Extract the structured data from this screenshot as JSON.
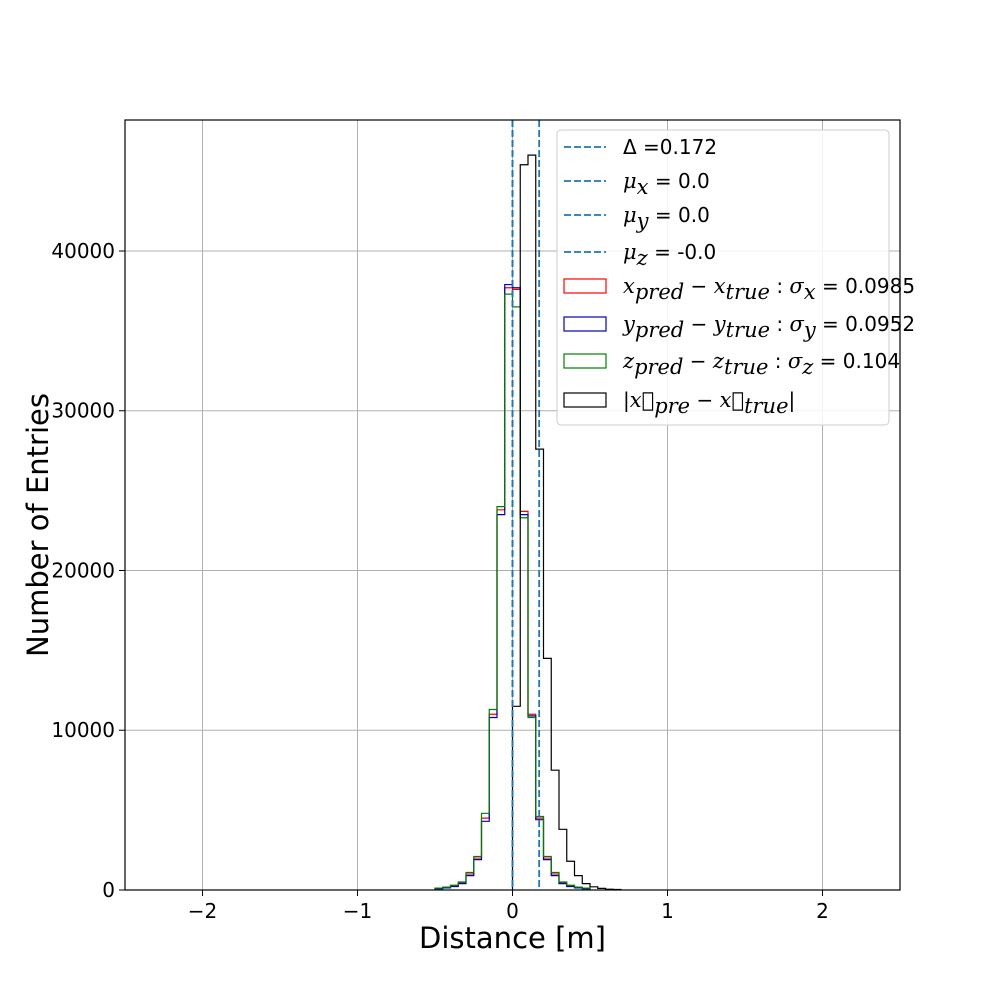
{
  "chart_data": {
    "type": "histogram",
    "xlabel": "Distance [m]",
    "ylabel": "Number of Entries",
    "xlim": [
      -2.5,
      2.5
    ],
    "ylim": [
      0,
      48200
    ],
    "xticks": [
      -2,
      -1,
      0,
      1,
      2
    ],
    "xtick_labels": [
      "−2",
      "−1",
      "0",
      "1",
      "2"
    ],
    "yticks": [
      0,
      10000,
      20000,
      30000,
      40000
    ],
    "ytick_labels": [
      "0",
      "10000",
      "20000",
      "30000",
      "40000"
    ],
    "grid": true,
    "legend_position": "top-right",
    "bin_width": 0.05,
    "vlines": [
      {
        "x": 0.172,
        "label": "Δ =0.172",
        "style": "dashed",
        "color": "#1f77b4"
      },
      {
        "x": 0.0,
        "label": "μ_x = 0.0",
        "style": "dashed",
        "color": "#1f77b4"
      },
      {
        "x": 0.0,
        "label": "μ_y = 0.0",
        "style": "dashed",
        "color": "#1f77b4"
      },
      {
        "x": 0.0,
        "label": "μ_z = -0.0",
        "style": "dashed",
        "color": "#1f77b4"
      }
    ],
    "series": [
      {
        "name": "x_pred − x_true :  σ_x = 0.0985",
        "color": "#ff0000",
        "bins": [
          [
            -0.5,
            100
          ],
          [
            -0.45,
            150
          ],
          [
            -0.4,
            250
          ],
          [
            -0.35,
            450
          ],
          [
            -0.3,
            1000
          ],
          [
            -0.25,
            2000
          ],
          [
            -0.2,
            4500
          ],
          [
            -0.15,
            11000
          ],
          [
            -0.1,
            23800
          ],
          [
            -0.05,
            37700
          ],
          [
            0.0,
            37600
          ],
          [
            0.05,
            23700
          ],
          [
            0.1,
            11000
          ],
          [
            0.15,
            4500
          ],
          [
            0.2,
            2000
          ],
          [
            0.25,
            1000
          ],
          [
            0.3,
            450
          ],
          [
            0.35,
            250
          ],
          [
            0.4,
            150
          ],
          [
            0.45,
            100
          ]
        ]
      },
      {
        "name": "y_pred − y_true :  σ_y = 0.0952",
        "color": "#0000bb",
        "bins": [
          [
            -0.5,
            80
          ],
          [
            -0.45,
            130
          ],
          [
            -0.4,
            220
          ],
          [
            -0.35,
            400
          ],
          [
            -0.3,
            900
          ],
          [
            -0.25,
            1900
          ],
          [
            -0.2,
            4300
          ],
          [
            -0.15,
            10800
          ],
          [
            -0.1,
            23500
          ],
          [
            -0.05,
            37900
          ],
          [
            0.0,
            37700
          ],
          [
            0.05,
            23500
          ],
          [
            0.1,
            10900
          ],
          [
            0.15,
            4400
          ],
          [
            0.2,
            1900
          ],
          [
            0.25,
            900
          ],
          [
            0.3,
            400
          ],
          [
            0.35,
            220
          ],
          [
            0.4,
            130
          ],
          [
            0.45,
            80
          ]
        ]
      },
      {
        "name": "z_pred − z_true :  σ_z = 0.104",
        "color": "#008000",
        "bins": [
          [
            -0.5,
            120
          ],
          [
            -0.45,
            180
          ],
          [
            -0.4,
            300
          ],
          [
            -0.35,
            500
          ],
          [
            -0.3,
            1100
          ],
          [
            -0.25,
            2100
          ],
          [
            -0.2,
            4800
          ],
          [
            -0.15,
            11300
          ],
          [
            -0.1,
            24000
          ],
          [
            -0.05,
            37300
          ],
          [
            0.0,
            36500
          ],
          [
            0.05,
            23300
          ],
          [
            0.1,
            10800
          ],
          [
            0.15,
            4600
          ],
          [
            0.2,
            2100
          ],
          [
            0.25,
            1100
          ],
          [
            0.3,
            500
          ],
          [
            0.35,
            300
          ],
          [
            0.4,
            180
          ],
          [
            0.45,
            120
          ]
        ]
      },
      {
        "name": "|x⃗_pre − x⃗_true|",
        "color": "#000000",
        "bins": [
          [
            0.0,
            11500
          ],
          [
            0.05,
            45400
          ],
          [
            0.1,
            46000
          ],
          [
            0.15,
            27600
          ],
          [
            0.2,
            14500
          ],
          [
            0.25,
            7500
          ],
          [
            0.3,
            3800
          ],
          [
            0.35,
            1800
          ],
          [
            0.4,
            900
          ],
          [
            0.45,
            400
          ],
          [
            0.5,
            200
          ],
          [
            0.55,
            100
          ],
          [
            0.6,
            50
          ],
          [
            0.65,
            30
          ]
        ]
      }
    ],
    "legend": {
      "vlines": [
        {
          "pre": "Δ =0.172"
        },
        {
          "sym": "μ",
          "sub": "x",
          "post": " = 0.0"
        },
        {
          "sym": "μ",
          "sub": "y",
          "post": " = 0.0"
        },
        {
          "sym": "μ",
          "sub": "z",
          "post": " = -0.0"
        }
      ],
      "series": [
        {
          "v": "x",
          "sub1": "pred",
          "op": " − ",
          "sub2": "true",
          "mid": " :  ",
          "sig": "σ",
          "sigsub": "x",
          "val": " = 0.0985"
        },
        {
          "v": "y",
          "sub1": "pred",
          "op": " − ",
          "sub2": "true",
          "mid": " :  ",
          "sig": "σ",
          "sigsub": "y",
          "val": " = 0.0952"
        },
        {
          "v": "z",
          "sub1": "pred",
          "op": " − ",
          "sub2": "true",
          "mid": " :  ",
          "sig": "σ",
          "sigsub": "z",
          "val": " = 0.104"
        },
        {
          "bar1": "|",
          "vec1": "x⃗",
          "sub1": "pre",
          "op": " − ",
          "vec2": "x⃗",
          "sub2": "true",
          "bar2": "|"
        }
      ]
    }
  }
}
